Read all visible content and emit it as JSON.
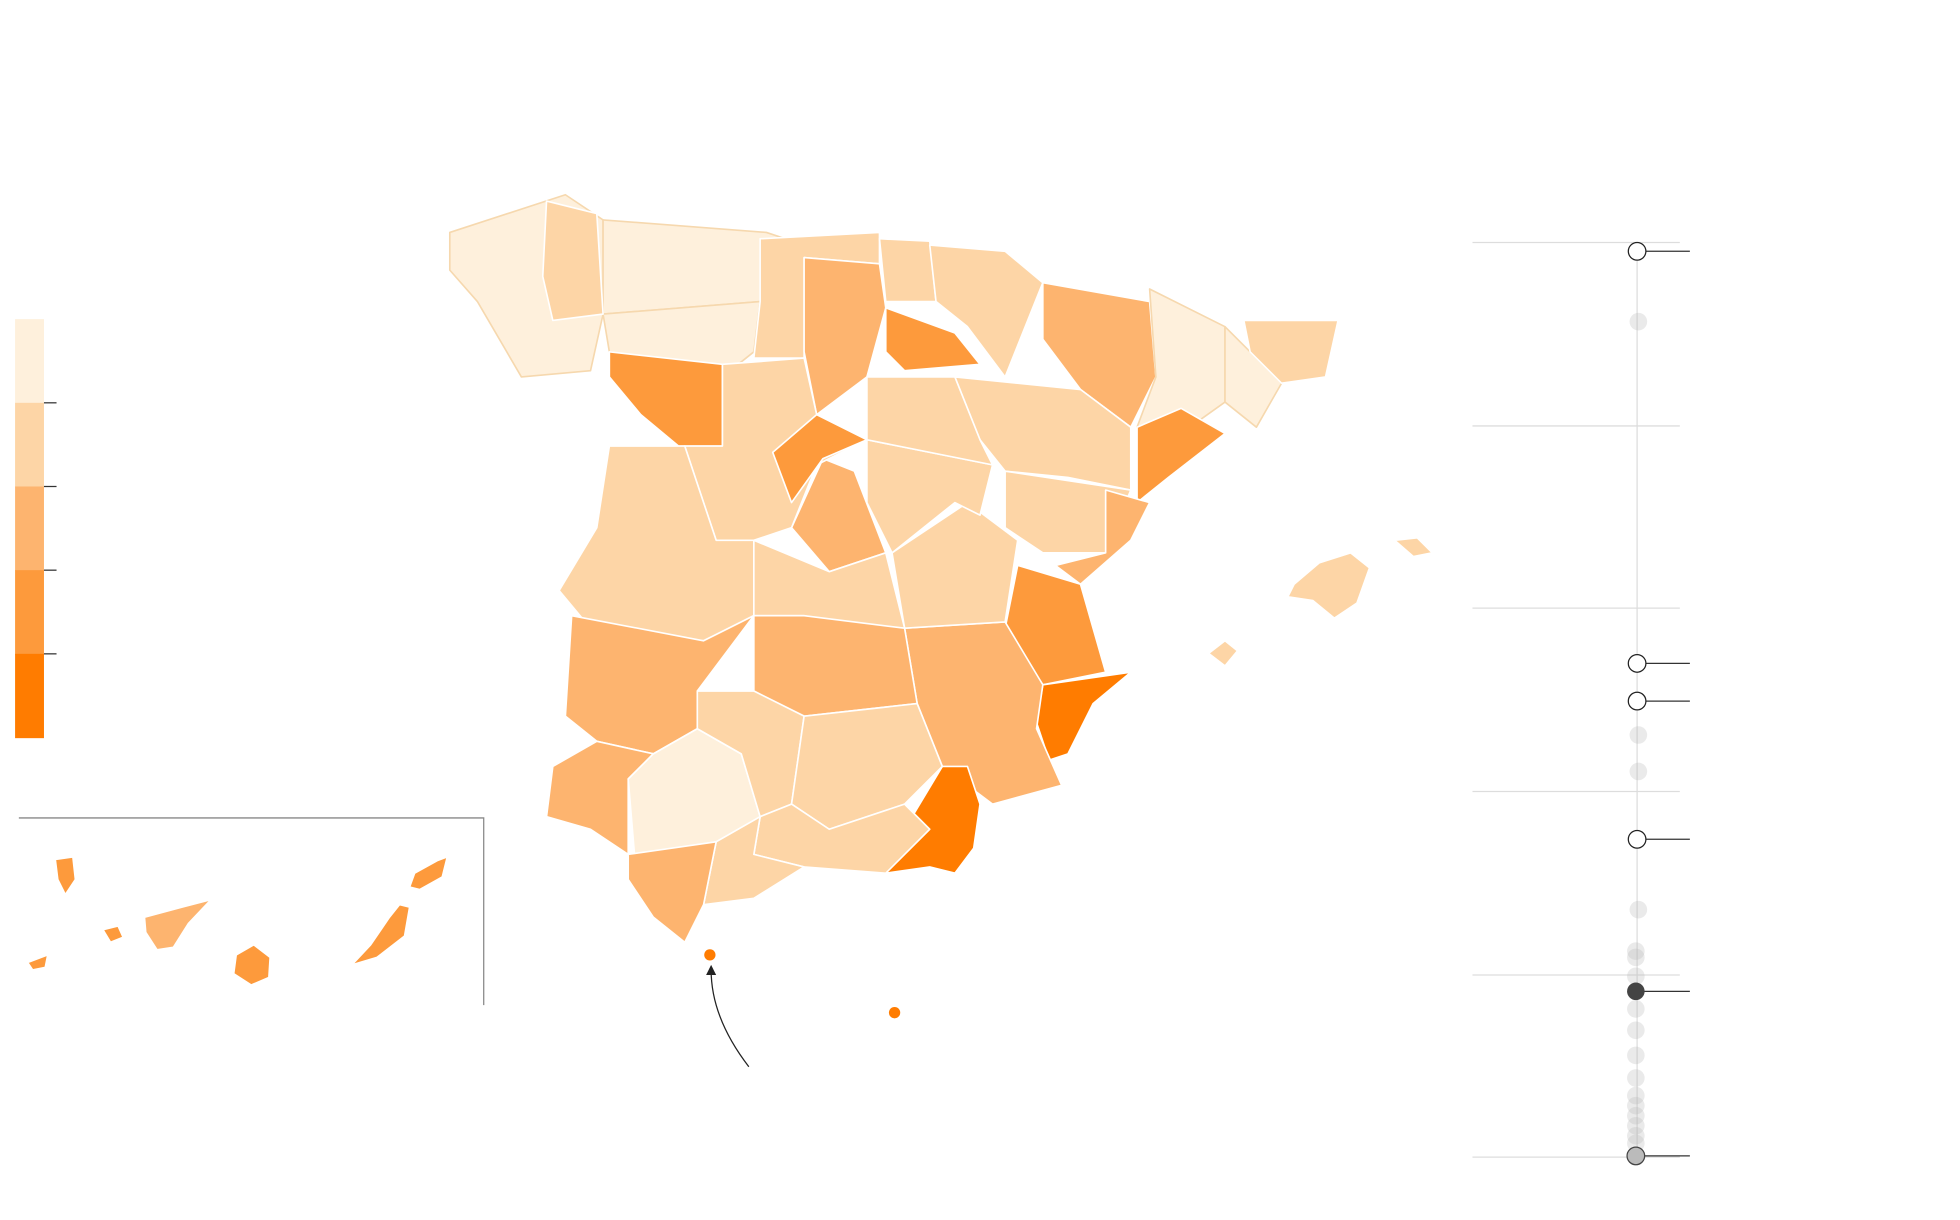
{
  "legend": {
    "colors": [
      "#fef0dc",
      "#fdd5a6",
      "#fdb46f",
      "#fd9a3c",
      "#ff7c00"
    ]
  }
}
